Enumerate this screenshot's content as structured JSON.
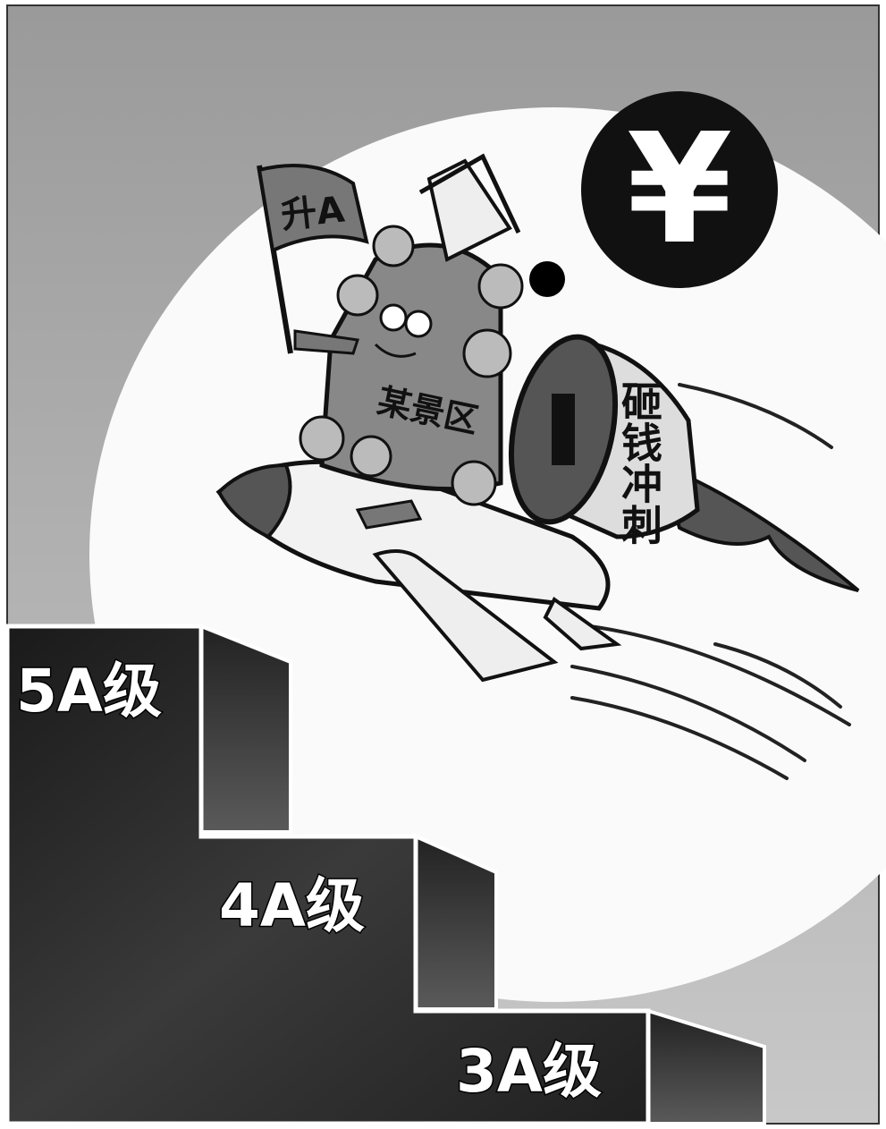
{
  "flag": {
    "label": "升A"
  },
  "character": {
    "label": "某景区"
  },
  "jet": {
    "label": "砸钱冲刺"
  },
  "thought": {
    "symbol": "¥"
  },
  "stairs": {
    "steps": [
      "5A级",
      "4A级",
      "3A级"
    ]
  }
}
